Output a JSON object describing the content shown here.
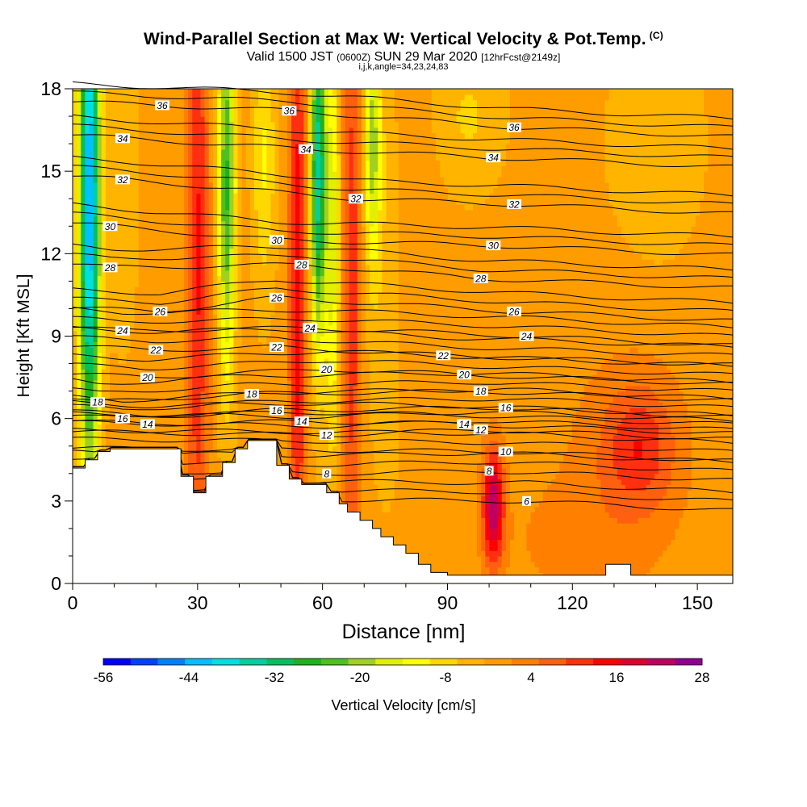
{
  "title": {
    "main": "Wind-Parallel Section at Max W: Vertical Velocity & Pot.Temp.",
    "copyright": "(C)",
    "valid_prefix": "Valid 1500 JST",
    "valid_z": "(0600Z)",
    "valid_date": "SUN 29 Mar 2020",
    "forecast": "[12hrFcst@2149z]",
    "indices": "i,j,k,angle=34,23,24,83"
  },
  "chart_data": {
    "type": "heatmap",
    "xlabel": "Distance [nm]",
    "ylabel": "Height [Kft MSL]",
    "xlim": [
      0,
      158.5
    ],
    "ylim": [
      0,
      18
    ],
    "x_ticks": [
      0,
      30,
      60,
      90,
      120,
      150
    ],
    "y_ticks": [
      0,
      3,
      6,
      9,
      12,
      15,
      18
    ],
    "colorbar": {
      "label": "Vertical Velocity [cm/s]",
      "tick_labels": [
        "-56",
        "-44",
        "-32",
        "-20",
        "-8",
        "4",
        "16",
        "28"
      ],
      "min": -56,
      "max": 28,
      "step": 4,
      "colors": [
        "#0000ff",
        "#0040ff",
        "#0080ff",
        "#00c0ff",
        "#00e0e0",
        "#00d0a0",
        "#00c060",
        "#20b020",
        "#50c020",
        "#a0d020",
        "#e0f000",
        "#ffff00",
        "#ffd800",
        "#ffb400",
        "#ff9c00",
        "#ff8000",
        "#ff6010",
        "#ff3010",
        "#ff0000",
        "#e00030",
        "#c00060",
        "#900090"
      ]
    },
    "terrain_kft": [
      [
        0,
        4.2
      ],
      [
        3,
        4.2
      ],
      [
        3,
        4.5
      ],
      [
        6,
        4.5
      ],
      [
        6,
        4.8
      ],
      [
        9,
        4.8
      ],
      [
        9,
        4.9
      ],
      [
        26,
        4.9
      ],
      [
        26,
        3.9
      ],
      [
        29,
        3.9
      ],
      [
        29,
        3.3
      ],
      [
        32,
        3.3
      ],
      [
        32,
        3.9
      ],
      [
        36,
        3.9
      ],
      [
        36,
        4.4
      ],
      [
        39,
        4.4
      ],
      [
        39,
        4.9
      ],
      [
        42,
        4.9
      ],
      [
        42,
        5.2
      ],
      [
        49,
        5.2
      ],
      [
        49,
        4.3
      ],
      [
        52,
        4.3
      ],
      [
        52,
        3.8
      ],
      [
        55,
        3.8
      ],
      [
        55,
        3.6
      ],
      [
        61,
        3.6
      ],
      [
        61,
        3.3
      ],
      [
        64,
        3.3
      ],
      [
        64,
        2.9
      ],
      [
        66,
        2.9
      ],
      [
        66,
        2.6
      ],
      [
        69,
        2.6
      ],
      [
        69,
        2.3
      ],
      [
        72,
        2.3
      ],
      [
        72,
        2.0
      ],
      [
        74,
        2.0
      ],
      [
        74,
        1.7
      ],
      [
        77,
        1.7
      ],
      [
        77,
        1.4
      ],
      [
        80,
        1.4
      ],
      [
        80,
        1.1
      ],
      [
        83,
        1.1
      ],
      [
        83,
        0.7
      ],
      [
        86,
        0.7
      ],
      [
        86,
        0.4
      ],
      [
        90,
        0.4
      ],
      [
        90,
        0.3
      ],
      [
        128,
        0.3
      ],
      [
        128,
        0.7
      ],
      [
        134,
        0.7
      ],
      [
        134,
        0.3
      ],
      [
        158.5,
        0.3
      ]
    ],
    "theta_labels": [
      {
        "x": 21.5,
        "y": 17.4,
        "v": "36"
      },
      {
        "x": 52,
        "y": 17.2,
        "v": "36"
      },
      {
        "x": 106,
        "y": 16.6,
        "v": "36"
      },
      {
        "x": 12,
        "y": 16.2,
        "v": "34"
      },
      {
        "x": 56,
        "y": 15.8,
        "v": "34"
      },
      {
        "x": 101,
        "y": 15.5,
        "v": "34"
      },
      {
        "x": 12,
        "y": 14.7,
        "v": "32"
      },
      {
        "x": 68,
        "y": 14.0,
        "v": "32"
      },
      {
        "x": 106,
        "y": 13.8,
        "v": "32"
      },
      {
        "x": 9,
        "y": 13.0,
        "v": "30"
      },
      {
        "x": 49,
        "y": 12.5,
        "v": "30"
      },
      {
        "x": 101,
        "y": 12.3,
        "v": "30"
      },
      {
        "x": 9,
        "y": 11.5,
        "v": "28"
      },
      {
        "x": 55,
        "y": 11.6,
        "v": "28"
      },
      {
        "x": 98,
        "y": 11.1,
        "v": "28"
      },
      {
        "x": 21,
        "y": 9.9,
        "v": "26"
      },
      {
        "x": 49,
        "y": 10.4,
        "v": "26"
      },
      {
        "x": 106,
        "y": 9.9,
        "v": "26"
      },
      {
        "x": 12,
        "y": 9.2,
        "v": "24"
      },
      {
        "x": 57,
        "y": 9.3,
        "v": "24"
      },
      {
        "x": 109,
        "y": 9.0,
        "v": "24"
      },
      {
        "x": 20,
        "y": 8.5,
        "v": "22"
      },
      {
        "x": 49,
        "y": 8.6,
        "v": "22"
      },
      {
        "x": 89,
        "y": 8.3,
        "v": "22"
      },
      {
        "x": 18,
        "y": 7.5,
        "v": "20"
      },
      {
        "x": 61,
        "y": 7.8,
        "v": "20"
      },
      {
        "x": 94,
        "y": 7.6,
        "v": "20"
      },
      {
        "x": 6,
        "y": 6.6,
        "v": "18"
      },
      {
        "x": 43,
        "y": 6.9,
        "v": "18"
      },
      {
        "x": 98,
        "y": 7.0,
        "v": "18"
      },
      {
        "x": 12,
        "y": 6.0,
        "v": "16"
      },
      {
        "x": 49,
        "y": 6.3,
        "v": "16"
      },
      {
        "x": 104,
        "y": 6.4,
        "v": "16"
      },
      {
        "x": 18,
        "y": 5.8,
        "v": "14"
      },
      {
        "x": 55,
        "y": 5.9,
        "v": "14"
      },
      {
        "x": 94,
        "y": 5.8,
        "v": "14"
      },
      {
        "x": 61,
        "y": 5.4,
        "v": "12"
      },
      {
        "x": 98,
        "y": 5.6,
        "v": "12"
      },
      {
        "x": 104,
        "y": 4.8,
        "v": "10"
      },
      {
        "x": 61,
        "y": 4.0,
        "v": "8"
      },
      {
        "x": 100,
        "y": 4.1,
        "v": "8"
      },
      {
        "x": 109,
        "y": 3.0,
        "v": "6"
      }
    ],
    "velocity_features": [
      {
        "x": 4,
        "z": 14,
        "sx": 1.8,
        "sz": 7,
        "v": -46
      },
      {
        "x": 12,
        "z": 15,
        "sx": 3,
        "sz": 5,
        "v": -4
      },
      {
        "x": 30,
        "z": 12,
        "sx": 1.9,
        "sz": 9,
        "v": 15
      },
      {
        "x": 37,
        "z": 14.5,
        "sx": 1.5,
        "sz": 5,
        "v": -26
      },
      {
        "x": 46,
        "z": 15.5,
        "sx": 2,
        "sz": 3.5,
        "v": -10
      },
      {
        "x": 54,
        "z": 11,
        "sx": 1.5,
        "sz": 9,
        "v": 17
      },
      {
        "x": 59,
        "z": 15,
        "sx": 1.3,
        "sz": 4.5,
        "v": -36
      },
      {
        "x": 62.5,
        "z": 12.5,
        "sx": 1.3,
        "sz": 5.5,
        "v": -16
      },
      {
        "x": 67,
        "z": 11,
        "sx": 1.7,
        "sz": 8,
        "v": 14
      },
      {
        "x": 72,
        "z": 16,
        "sx": 1.4,
        "sz": 3,
        "v": -18
      },
      {
        "x": 76,
        "z": 12,
        "sx": 4,
        "sz": 6,
        "v": -6
      },
      {
        "x": 80,
        "z": 13,
        "sx": 4,
        "sz": 5,
        "v": 4
      },
      {
        "x": 101,
        "z": 2.8,
        "sx": 1.8,
        "sz": 1.5,
        "v": 26
      },
      {
        "x": 136,
        "z": 5.0,
        "sx": 6,
        "sz": 1.6,
        "v": 11
      },
      {
        "x": 132,
        "z": 4.0,
        "sx": 12,
        "sz": 3.5,
        "v": 4
      },
      {
        "x": 140,
        "z": 16,
        "sx": 8,
        "sz": 3,
        "v": -5
      },
      {
        "x": 95,
        "z": 17,
        "sx": 6,
        "sz": 2,
        "v": -6
      },
      {
        "x": 118,
        "z": 1.5,
        "sx": 10,
        "sz": 1.5,
        "v": 3
      }
    ]
  }
}
